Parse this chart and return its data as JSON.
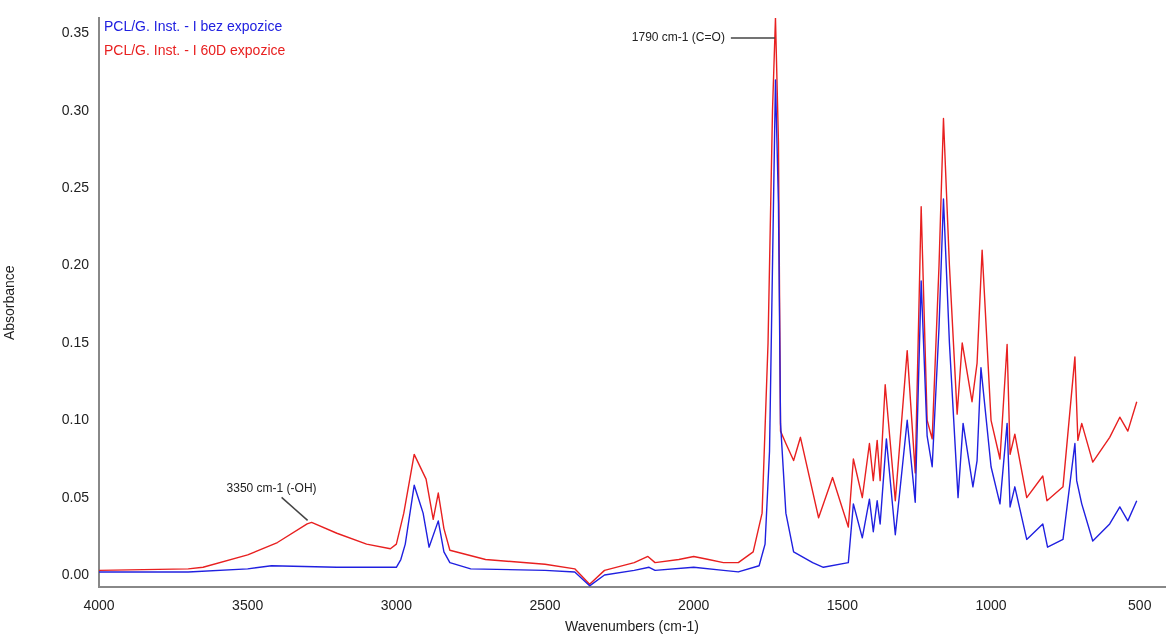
{
  "chart_data": {
    "type": "line",
    "xlabel": "Wavenumbers (cm-1)",
    "ylabel": "Absorbance",
    "xlim": [
      4000,
      415
    ],
    "ylim": [
      -0.008,
      0.36
    ],
    "xticks": [
      4000,
      3500,
      3000,
      2500,
      2000,
      1500,
      1000,
      500
    ],
    "yticks": [
      {
        "value": 0,
        "label": "0.00"
      },
      {
        "value": 0.05,
        "label": "0.05"
      },
      {
        "value": 0.1,
        "label": "0.10"
      },
      {
        "value": 0.15,
        "label": "0.15"
      },
      {
        "value": 0.2,
        "label": "0.20"
      },
      {
        "value": 0.25,
        "label": "0.25"
      },
      {
        "value": 0.3,
        "label": "0.30"
      },
      {
        "value": 0.35,
        "label": "0.35"
      }
    ],
    "grid": false,
    "legend": "top left",
    "marker": "none",
    "line_style": "solid",
    "annotations": [
      {
        "text": "3350 cm-1 (-OH)",
        "x": 3285,
        "y": 0.034
      },
      {
        "text": "1790 cm-1 (C=O)",
        "x": 1727,
        "y": 0.347
      }
    ],
    "series": [
      {
        "name": "PCL/G. Inst. - I bez expozice",
        "color": "#2020e0",
        "x": [
          4000,
          3700,
          3500,
          3420,
          3200,
          3000,
          2985,
          2970,
          2940,
          2910,
          2890,
          2859,
          2840,
          2820,
          2750,
          2500,
          2400,
          2350,
          2300,
          2200,
          2150,
          2130,
          2000,
          1900,
          1850,
          1780,
          1760,
          1745,
          1735,
          1725,
          1715,
          1708,
          1690,
          1664,
          1600,
          1564,
          1480,
          1463,
          1433,
          1409,
          1396,
          1383,
          1373,
          1352,
          1322,
          1282,
          1255,
          1235,
          1215,
          1198,
          1175,
          1160,
          1140,
          1111,
          1094,
          1061,
          1047,
          1034,
          1000,
          970,
          946,
          936,
          920,
          880,
          826,
          810,
          758,
          718,
          712,
          695,
          658,
          601,
          567,
          540,
          510
        ],
        "values": [
          0.002,
          0.002,
          0.004,
          0.006,
          0.005,
          0.005,
          0.01,
          0.02,
          0.058,
          0.04,
          0.018,
          0.035,
          0.015,
          0.008,
          0.004,
          0.003,
          0.002,
          -0.007,
          0.0,
          0.003,
          0.005,
          0.003,
          0.005,
          0.003,
          0.002,
          0.006,
          0.02,
          0.08,
          0.2,
          0.32,
          0.24,
          0.098,
          0.04,
          0.015,
          0.008,
          0.005,
          0.008,
          0.046,
          0.024,
          0.049,
          0.028,
          0.048,
          0.033,
          0.088,
          0.026,
          0.1,
          0.047,
          0.19,
          0.09,
          0.07,
          0.16,
          0.243,
          0.15,
          0.05,
          0.098,
          0.057,
          0.074,
          0.134,
          0.07,
          0.046,
          0.098,
          0.044,
          0.057,
          0.023,
          0.033,
          0.018,
          0.023,
          0.085,
          0.061,
          0.046,
          0.022,
          0.033,
          0.044,
          0.035,
          0.048
        ]
      },
      {
        "name": "PCL/G. Inst. - I 60D expozice",
        "color": "#e82020",
        "x": [
          4000,
          3700,
          3650,
          3500,
          3400,
          3300,
          3285,
          3200,
          3100,
          3020,
          3000,
          2975,
          2940,
          2900,
          2876,
          2859,
          2840,
          2820,
          2700,
          2500,
          2400,
          2350,
          2300,
          2200,
          2154,
          2130,
          2050,
          2000,
          1950,
          1900,
          1850,
          1800,
          1770,
          1750,
          1735,
          1725,
          1715,
          1708,
          1690,
          1664,
          1641,
          1580,
          1533,
          1480,
          1463,
          1433,
          1409,
          1396,
          1383,
          1373,
          1356,
          1322,
          1282,
          1255,
          1235,
          1215,
          1198,
          1175,
          1160,
          1140,
          1114,
          1097,
          1064,
          1047,
          1030,
          1000,
          970,
          946,
          936,
          920,
          880,
          826,
          812,
          758,
          718,
          708,
          695,
          658,
          601,
          567,
          540,
          510
        ],
        "values": [
          0.003,
          0.004,
          0.005,
          0.013,
          0.021,
          0.033,
          0.034,
          0.027,
          0.02,
          0.017,
          0.02,
          0.04,
          0.078,
          0.062,
          0.036,
          0.053,
          0.03,
          0.016,
          0.01,
          0.007,
          0.004,
          -0.006,
          0.003,
          0.008,
          0.012,
          0.008,
          0.01,
          0.012,
          0.01,
          0.008,
          0.008,
          0.015,
          0.04,
          0.15,
          0.3,
          0.36,
          0.28,
          0.093,
          0.085,
          0.074,
          0.089,
          0.037,
          0.063,
          0.031,
          0.075,
          0.05,
          0.085,
          0.061,
          0.087,
          0.061,
          0.123,
          0.048,
          0.145,
          0.066,
          0.238,
          0.1,
          0.088,
          0.2,
          0.295,
          0.2,
          0.104,
          0.15,
          0.112,
          0.137,
          0.21,
          0.1,
          0.075,
          0.149,
          0.078,
          0.091,
          0.05,
          0.064,
          0.048,
          0.057,
          0.141,
          0.087,
          0.098,
          0.073,
          0.089,
          0.102,
          0.093,
          0.112
        ]
      }
    ]
  }
}
